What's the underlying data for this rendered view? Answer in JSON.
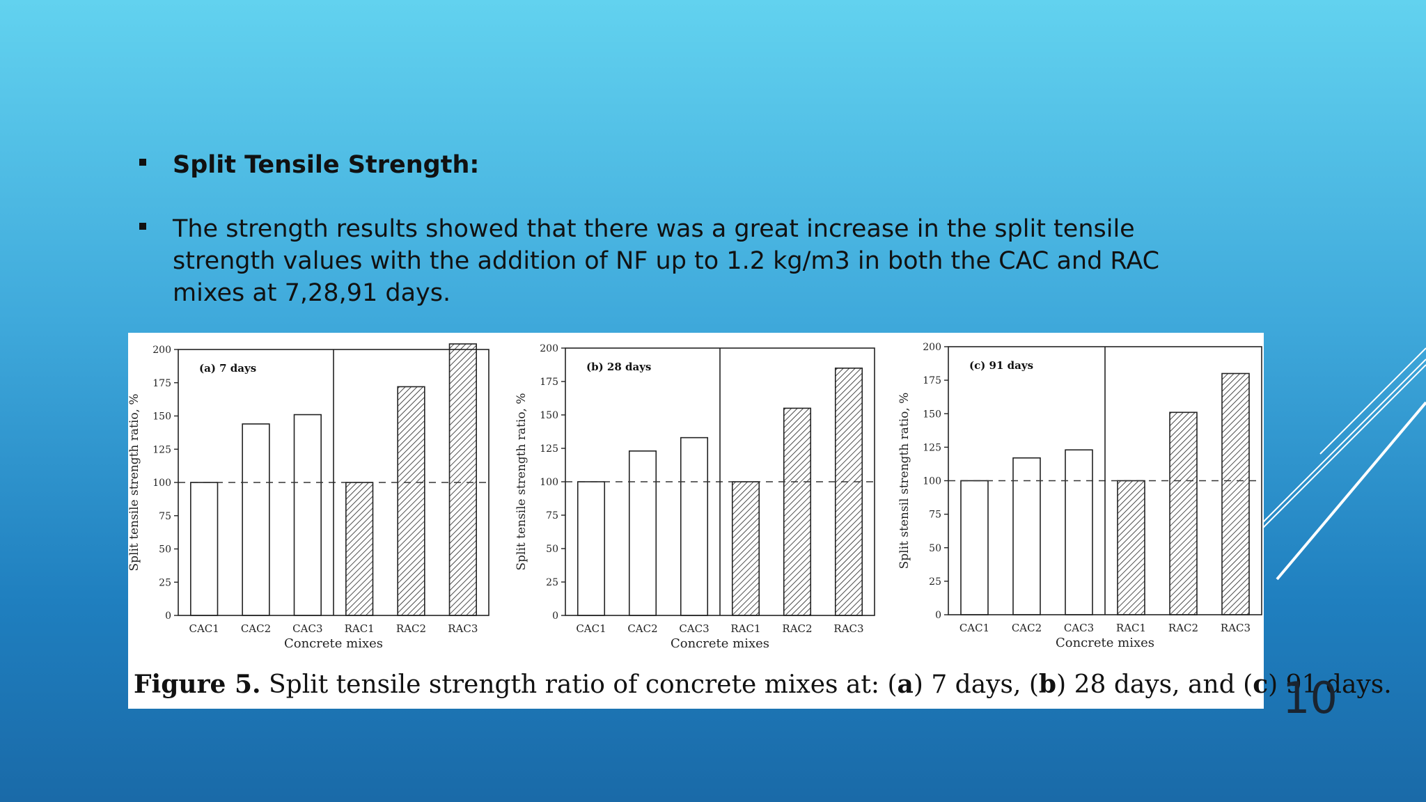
{
  "bullets": [
    {
      "text": "Split Tensile Strength:"
    },
    {
      "text": "The strength results showed that there was a great increase in the split tensile strength values with the addition of NF up to 1.2 kg/m3 in both the CAC and RAC mixes at 7,28,91 days."
    }
  ],
  "caption": {
    "label": "Figure 5.",
    "p1": " Split tensile strength ratio of concrete mixes at: (",
    "a": "a",
    "p2": ") 7 days, (",
    "b": "b",
    "p3": ") 28 days, and (",
    "c": "c",
    "p4": ") 91 days."
  },
  "page_number": "10",
  "colors": {
    "accent": "#ffffff",
    "text": "#111111"
  },
  "chart_data": [
    {
      "type": "bar",
      "title": "(a) 7 days",
      "xlabel": "Concrete mixes",
      "ylabel": "Split tensile strength ratio, %",
      "categories": [
        "CAC1",
        "CAC2",
        "CAC3",
        "RAC1",
        "RAC2",
        "RAC3"
      ],
      "values": [
        100,
        144,
        151,
        100,
        172,
        205
      ],
      "ylim": [
        0,
        200
      ],
      "yticks": [
        "0",
        "25",
        "50",
        "75",
        "100",
        "125",
        "150",
        "175",
        "200"
      ],
      "reference_line": 100,
      "hatched": [
        false,
        false,
        false,
        true,
        true,
        true
      ]
    },
    {
      "type": "bar",
      "title": "(b) 28 days",
      "xlabel": "Concrete mixes",
      "ylabel": "Split tensile strength ratio, %",
      "categories": [
        "CAC1",
        "CAC2",
        "CAC3",
        "RAC1",
        "RAC2",
        "RAC3"
      ],
      "values": [
        100,
        123,
        133,
        100,
        155,
        185
      ],
      "ylim": [
        0,
        200
      ],
      "yticks": [
        "0",
        "25",
        "50",
        "75",
        "100",
        "125",
        "150",
        "175",
        "200"
      ],
      "reference_line": 100,
      "hatched": [
        false,
        false,
        false,
        true,
        true,
        true
      ]
    },
    {
      "type": "bar",
      "title": "(c) 91 days",
      "xlabel": "Concrete mixes",
      "ylabel": "Split stensil strength ratio, %",
      "categories": [
        "CAC1",
        "CAC2",
        "CAC3",
        "RAC1",
        "RAC2",
        "RAC3"
      ],
      "values": [
        100,
        117,
        123,
        100,
        151,
        180
      ],
      "ylim": [
        0,
        200
      ],
      "yticks": [
        "0",
        "25",
        "50",
        "75",
        "100",
        "125",
        "150",
        "175",
        "200"
      ],
      "reference_line": 100,
      "hatched": [
        false,
        false,
        false,
        true,
        true,
        true
      ]
    }
  ]
}
